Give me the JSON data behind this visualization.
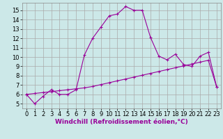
{
  "title": "",
  "xlabel": "Windchill (Refroidissement éolien,°C)",
  "bg_color": "#cce8e8",
  "line_color": "#990099",
  "grid_color": "#aaaaaa",
  "xlim": [
    -0.5,
    23.5
  ],
  "ylim": [
    4.5,
    15.8
  ],
  "xticks": [
    0,
    1,
    2,
    3,
    4,
    5,
    6,
    7,
    8,
    9,
    10,
    11,
    12,
    13,
    14,
    15,
    16,
    17,
    18,
    19,
    20,
    21,
    22,
    23
  ],
  "yticks": [
    5,
    6,
    7,
    8,
    9,
    10,
    11,
    12,
    13,
    14,
    15
  ],
  "series1_x": [
    0,
    1,
    2,
    3,
    4,
    5,
    6,
    7,
    8,
    9,
    10,
    11,
    12,
    13,
    14,
    15,
    16,
    17,
    18,
    19,
    20,
    21,
    22,
    23
  ],
  "series1_y": [
    6.0,
    5.0,
    5.8,
    6.5,
    6.0,
    6.0,
    6.5,
    10.2,
    12.0,
    13.2,
    14.4,
    14.6,
    15.4,
    15.0,
    15.0,
    12.1,
    10.1,
    9.7,
    10.3,
    9.2,
    9.0,
    10.1,
    10.5,
    6.8
  ],
  "series2_x": [
    0,
    1,
    2,
    3,
    4,
    5,
    6,
    7,
    8,
    9,
    10,
    11,
    12,
    13,
    14,
    15,
    16,
    17,
    18,
    19,
    20,
    21,
    22,
    23
  ],
  "series2_y": [
    6.0,
    6.1,
    6.2,
    6.3,
    6.4,
    6.5,
    6.6,
    6.7,
    6.85,
    7.05,
    7.25,
    7.45,
    7.65,
    7.85,
    8.05,
    8.25,
    8.45,
    8.65,
    8.85,
    9.05,
    9.25,
    9.45,
    9.65,
    6.8
  ],
  "marker": "+",
  "marker_size": 3,
  "linewidth": 0.8,
  "xlabel_fontsize": 6.5,
  "tick_fontsize": 6
}
